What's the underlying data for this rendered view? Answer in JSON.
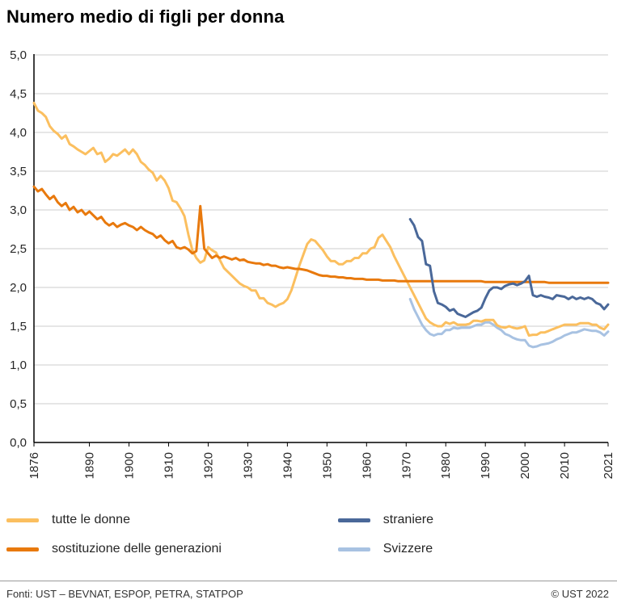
{
  "footer": {
    "sources": "Fonti: UST – BEVNAT, ESPOP, PETRA, STATPOP",
    "copyright": "© UST 2022"
  },
  "chart_data": {
    "type": "line",
    "title": "Numero medio di figli per donna",
    "xlabel": "",
    "ylabel": "",
    "x_range": [
      1876,
      2021
    ],
    "ylim": [
      0,
      5
    ],
    "grid": true,
    "legend_position": "bottom",
    "colors": {
      "grid": "#cccccc",
      "axis": "#000000",
      "tick_text": "#262626"
    },
    "y_ticks": [
      {
        "value": 0.0,
        "label": "0,0"
      },
      {
        "value": 0.5,
        "label": "0,5"
      },
      {
        "value": 1.0,
        "label": "1,0"
      },
      {
        "value": 1.5,
        "label": "1,5"
      },
      {
        "value": 2.0,
        "label": "2,0"
      },
      {
        "value": 2.5,
        "label": "2,5"
      },
      {
        "value": 3.0,
        "label": "3,0"
      },
      {
        "value": 3.5,
        "label": "3,5"
      },
      {
        "value": 4.0,
        "label": "4,0"
      },
      {
        "value": 4.5,
        "label": "4,5"
      },
      {
        "value": 5.0,
        "label": "5,0"
      }
    ],
    "x_ticks": [
      {
        "value": 1876,
        "label": "1876"
      },
      {
        "value": 1890,
        "label": "1890"
      },
      {
        "value": 1900,
        "label": "1900"
      },
      {
        "value": 1910,
        "label": "1910"
      },
      {
        "value": 1920,
        "label": "1920"
      },
      {
        "value": 1930,
        "label": "1930"
      },
      {
        "value": 1940,
        "label": "1940"
      },
      {
        "value": 1950,
        "label": "1950"
      },
      {
        "value": 1960,
        "label": "1960"
      },
      {
        "value": 1970,
        "label": "1970"
      },
      {
        "value": 1980,
        "label": "1980"
      },
      {
        "value": 1990,
        "label": "1990"
      },
      {
        "value": 2000,
        "label": "2000"
      },
      {
        "value": 2010,
        "label": "2010"
      },
      {
        "value": 2021,
        "label": "2021"
      }
    ],
    "draw_order": [
      3,
      0,
      1,
      2
    ],
    "series": [
      {
        "name": "tutte le donne",
        "color": "#FBBF5F",
        "start_year": 1876,
        "values": [
          4.38,
          4.28,
          4.25,
          4.2,
          4.08,
          4.02,
          3.98,
          3.92,
          3.96,
          3.85,
          3.82,
          3.78,
          3.75,
          3.72,
          3.76,
          3.8,
          3.72,
          3.74,
          3.62,
          3.66,
          3.72,
          3.7,
          3.74,
          3.78,
          3.72,
          3.78,
          3.72,
          3.62,
          3.58,
          3.52,
          3.48,
          3.38,
          3.44,
          3.38,
          3.28,
          3.12,
          3.1,
          3.02,
          2.92,
          2.68,
          2.48,
          2.38,
          2.32,
          2.35,
          2.52,
          2.48,
          2.45,
          2.35,
          2.25,
          2.2,
          2.15,
          2.1,
          2.05,
          2.02,
          2.0,
          1.96,
          1.96,
          1.86,
          1.86,
          1.8,
          1.78,
          1.75,
          1.78,
          1.8,
          1.85,
          1.96,
          2.12,
          2.28,
          2.42,
          2.56,
          2.62,
          2.6,
          2.54,
          2.48,
          2.4,
          2.34,
          2.34,
          2.3,
          2.3,
          2.34,
          2.34,
          2.38,
          2.38,
          2.44,
          2.44,
          2.5,
          2.52,
          2.64,
          2.68,
          2.6,
          2.52,
          2.4,
          2.3,
          2.2,
          2.1,
          2.0,
          1.9,
          1.8,
          1.7,
          1.6,
          1.55,
          1.52,
          1.5,
          1.5,
          1.55,
          1.53,
          1.55,
          1.52,
          1.52,
          1.52,
          1.53,
          1.57,
          1.57,
          1.56,
          1.58,
          1.58,
          1.58,
          1.51,
          1.49,
          1.48,
          1.5,
          1.48,
          1.47,
          1.48,
          1.5,
          1.38,
          1.39,
          1.39,
          1.42,
          1.42,
          1.44,
          1.46,
          1.48,
          1.5,
          1.52,
          1.52,
          1.52,
          1.52,
          1.54,
          1.54,
          1.54,
          1.52,
          1.52,
          1.48,
          1.46,
          1.52
        ]
      },
      {
        "name": "sostituzione delle generazioni",
        "color": "#E8790D",
        "start_year": 1876,
        "values": [
          3.3,
          3.24,
          3.27,
          3.2,
          3.14,
          3.18,
          3.1,
          3.05,
          3.09,
          3.0,
          3.04,
          2.97,
          3.0,
          2.94,
          2.98,
          2.93,
          2.88,
          2.91,
          2.84,
          2.8,
          2.83,
          2.78,
          2.81,
          2.83,
          2.8,
          2.78,
          2.74,
          2.78,
          2.74,
          2.71,
          2.69,
          2.64,
          2.67,
          2.61,
          2.57,
          2.6,
          2.52,
          2.5,
          2.52,
          2.49,
          2.44,
          2.47,
          3.05,
          2.5,
          2.44,
          2.38,
          2.41,
          2.38,
          2.4,
          2.38,
          2.36,
          2.38,
          2.35,
          2.36,
          2.33,
          2.32,
          2.31,
          2.31,
          2.29,
          2.3,
          2.28,
          2.28,
          2.26,
          2.25,
          2.26,
          2.25,
          2.24,
          2.24,
          2.23,
          2.22,
          2.2,
          2.18,
          2.16,
          2.15,
          2.15,
          2.14,
          2.14,
          2.13,
          2.13,
          2.12,
          2.12,
          2.11,
          2.11,
          2.11,
          2.1,
          2.1,
          2.1,
          2.1,
          2.09,
          2.09,
          2.09,
          2.09,
          2.08,
          2.08,
          2.08,
          2.08,
          2.08,
          2.08,
          2.08,
          2.08,
          2.08,
          2.08,
          2.08,
          2.08,
          2.08,
          2.08,
          2.08,
          2.08,
          2.08,
          2.08,
          2.08,
          2.08,
          2.08,
          2.08,
          2.07,
          2.07,
          2.07,
          2.07,
          2.07,
          2.07,
          2.07,
          2.07,
          2.07,
          2.07,
          2.07,
          2.07,
          2.07,
          2.07,
          2.07,
          2.07,
          2.06,
          2.06,
          2.06,
          2.06,
          2.06,
          2.06,
          2.06,
          2.06,
          2.06,
          2.06,
          2.06,
          2.06,
          2.06,
          2.06,
          2.06,
          2.06
        ]
      },
      {
        "name": "straniere",
        "color": "#4A6899",
        "start_year": 1971,
        "values": [
          2.88,
          2.8,
          2.65,
          2.6,
          2.3,
          2.28,
          1.95,
          1.8,
          1.78,
          1.75,
          1.7,
          1.72,
          1.66,
          1.64,
          1.62,
          1.65,
          1.68,
          1.7,
          1.74,
          1.86,
          1.96,
          2.0,
          2.0,
          1.98,
          2.02,
          2.04,
          2.05,
          2.03,
          2.05,
          2.08,
          2.15,
          1.9,
          1.88,
          1.9,
          1.88,
          1.87,
          1.85,
          1.9,
          1.89,
          1.88,
          1.85,
          1.88,
          1.85,
          1.87,
          1.85,
          1.87,
          1.85,
          1.8,
          1.78,
          1.72,
          1.78
        ]
      },
      {
        "name": "Svizzere",
        "color": "#A8C2E2",
        "start_year": 1971,
        "values": [
          1.85,
          1.72,
          1.62,
          1.52,
          1.45,
          1.4,
          1.38,
          1.4,
          1.4,
          1.45,
          1.45,
          1.48,
          1.47,
          1.48,
          1.48,
          1.48,
          1.5,
          1.52,
          1.52,
          1.55,
          1.55,
          1.52,
          1.48,
          1.45,
          1.4,
          1.38,
          1.35,
          1.33,
          1.32,
          1.32,
          1.25,
          1.23,
          1.24,
          1.26,
          1.27,
          1.28,
          1.3,
          1.33,
          1.35,
          1.38,
          1.4,
          1.42,
          1.42,
          1.44,
          1.46,
          1.45,
          1.44,
          1.44,
          1.42,
          1.38,
          1.43
        ]
      }
    ]
  }
}
